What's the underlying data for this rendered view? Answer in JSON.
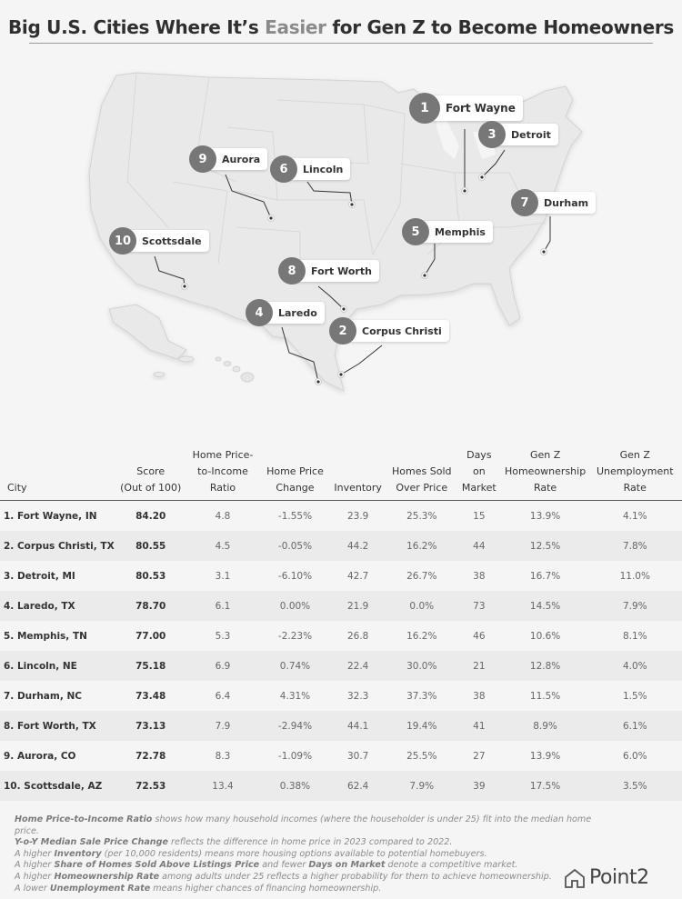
{
  "title": {
    "before": "Big U.S. Cities Where It’s ",
    "highlight": "Easier",
    "after": " for Gen Z to Become Homeowners"
  },
  "colors": {
    "accent": "#8a8a8a",
    "pin": "#777777",
    "row_alt": "#ebebeb"
  },
  "map": {
    "pins": [
      {
        "rank": "1",
        "name": "Fort Wayne"
      },
      {
        "rank": "2",
        "name": "Corpus Christi"
      },
      {
        "rank": "3",
        "name": "Detroit"
      },
      {
        "rank": "4",
        "name": "Laredo"
      },
      {
        "rank": "5",
        "name": "Memphis"
      },
      {
        "rank": "6",
        "name": "Lincoln"
      },
      {
        "rank": "7",
        "name": "Durham"
      },
      {
        "rank": "8",
        "name": "Fort Worth"
      },
      {
        "rank": "9",
        "name": "Aurora"
      },
      {
        "rank": "10",
        "name": "Scottsdale"
      }
    ]
  },
  "chart_data": {
    "type": "table",
    "columns": [
      "City",
      "Score (Out of 100)",
      "Home Price-to-Income Ratio",
      "Home Price Change",
      "Inventory",
      "Homes Sold Over Price",
      "Days on Market",
      "Gen Z Homeownership Rate",
      "Gen Z Unemployment Rate"
    ],
    "rows": [
      [
        "1. Fort Wayne, IN",
        "84.20",
        "4.8",
        "-1.55%",
        "23.9",
        "25.3%",
        "15",
        "13.9%",
        "4.1%"
      ],
      [
        "2. Corpus Christi, TX",
        "80.55",
        "4.5",
        "-0.05%",
        "44.2",
        "16.2%",
        "44",
        "12.5%",
        "7.8%"
      ],
      [
        "3. Detroit, MI",
        "80.53",
        "3.1",
        "-6.10%",
        "42.7",
        "26.7%",
        "38",
        "16.7%",
        "11.0%"
      ],
      [
        "4. Laredo, TX",
        "78.70",
        "6.1",
        "0.00%",
        "21.9",
        "0.0%",
        "73",
        "14.5%",
        "7.9%"
      ],
      [
        "5. Memphis, TN",
        "77.00",
        "5.3",
        "-2.23%",
        "26.8",
        "16.2%",
        "46",
        "10.6%",
        "8.1%"
      ],
      [
        "6. Lincoln, NE",
        "75.18",
        "6.9",
        "0.74%",
        "22.4",
        "30.0%",
        "21",
        "12.8%",
        "4.0%"
      ],
      [
        "7. Durham, NC",
        "73.48",
        "6.4",
        "4.31%",
        "32.3",
        "37.3%",
        "38",
        "11.5%",
        "1.5%"
      ],
      [
        "8. Fort Worth, TX",
        "73.13",
        "7.9",
        "-2.94%",
        "44.1",
        "19.4%",
        "41",
        "8.9%",
        "6.1%"
      ],
      [
        "9. Aurora, CO",
        "72.78",
        "8.3",
        "-1.09%",
        "30.7",
        "25.5%",
        "27",
        "13.9%",
        "6.0%"
      ],
      [
        "10. Scottsdale, AZ",
        "72.53",
        "13.4",
        "0.38%",
        "62.4",
        "7.9%",
        "39",
        "17.5%",
        "3.5%"
      ]
    ]
  },
  "notes": [
    {
      "bold": "Home Price-to-Income Ratio",
      "text": " shows how many household incomes (where the householder is under 25) fit into the median home price."
    },
    {
      "bold": "Y-o-Y Median Sale Price Change",
      "text": " reflects the difference in home price in 2023 compared to 2022."
    },
    {
      "pre": "A higher ",
      "bold": "Inventory",
      "text": " (per 10,000 residents) means more housing options available to potential homebuyers."
    },
    {
      "pre": "A higher ",
      "bold": "Share of Homes Sold Above Listings Price",
      "text": " and fewer ",
      "bold2": "Days on Market",
      "text2": " denote a competitive market."
    },
    {
      "pre": "A higher ",
      "bold": "Homeownership Rate",
      "text": " among adults under 25 reflects a higher probability for them to achieve homeownership."
    },
    {
      "pre": "A lower ",
      "bold": "Unemployment Rate",
      "text": " means higher chances of financing homeownership."
    }
  ],
  "logo": {
    "text": "Point2"
  }
}
